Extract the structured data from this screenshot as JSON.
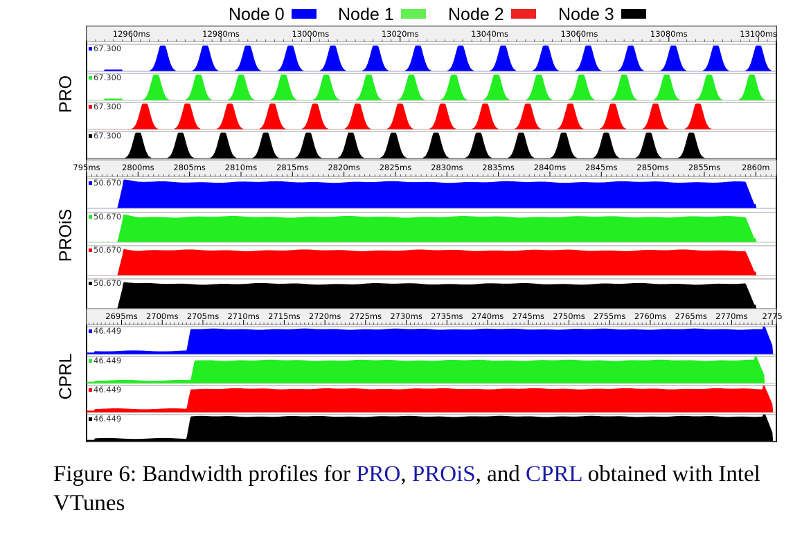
{
  "legend": [
    {
      "label": "Node 0",
      "color": "#0000ff"
    },
    {
      "label": "Node 1",
      "color": "#66ee55"
    },
    {
      "label": "Node 2",
      "color": "#ee2222"
    },
    {
      "label": "Node 3",
      "color": "#000000"
    }
  ],
  "chart_data": [
    {
      "type": "area",
      "ylabel": "PRO",
      "x_unit": "ms",
      "xlim": [
        12950,
        13104
      ],
      "x_ticks": [
        "12960ms",
        "12980ms",
        "13000ms",
        "13020ms",
        "13040ms",
        "13060ms",
        "13080ms",
        "13100ms"
      ],
      "x_tick_values": [
        12960,
        12980,
        13000,
        13020,
        13040,
        13060,
        13080,
        13100
      ],
      "ymax_label": "67.300",
      "ylim": [
        0,
        67.3
      ],
      "pattern": "periodic bursts",
      "series": [
        {
          "name": "Node 0",
          "color": "#0000ff",
          "peak_times_ms": [
            12967,
            12976.5,
            12986,
            12995.5,
            13005,
            13014.5,
            13024,
            13033.5,
            13043,
            13052.5,
            13062,
            13071.5,
            13081,
            13090.5,
            13100
          ]
        },
        {
          "name": "Node 1",
          "color": "#22ee22",
          "peak_times_ms": [
            12965.5,
            12975,
            12984.5,
            12994,
            13003.5,
            13013,
            13022.5,
            13032,
            13041.5,
            13051,
            13060.5,
            13070,
            13079.5,
            13089,
            13098.5
          ]
        },
        {
          "name": "Node 2",
          "color": "#ff0000",
          "peak_times_ms": [
            12963,
            12972.5,
            12982,
            12991.5,
            13001,
            13010.5,
            13020,
            13029.5,
            13039,
            13048.5,
            13058,
            13067.5,
            13077,
            13086.5
          ]
        },
        {
          "name": "Node 3",
          "color": "#000000",
          "peak_times_ms": [
            12961.5,
            12971,
            12980.5,
            12990,
            12999.5,
            13009,
            13018.5,
            13028,
            13037.5,
            13047,
            13056.5,
            13066,
            13075.5,
            13085
          ]
        }
      ]
    },
    {
      "type": "area",
      "ylabel": "PROiS",
      "x_unit": "ms",
      "xlim": [
        2795,
        2862
      ],
      "x_ticks": [
        "795ms",
        "2800ms",
        "2805ms",
        "2810ms",
        "2815ms",
        "2820ms",
        "2825ms",
        "2830ms",
        "2835ms",
        "2840ms",
        "2845ms",
        "2850ms",
        "2855ms",
        "2860m"
      ],
      "x_tick_values": [
        2795,
        2800,
        2805,
        2810,
        2815,
        2820,
        2825,
        2830,
        2835,
        2840,
        2845,
        2850,
        2855,
        2860
      ],
      "ymax_label": "50.670",
      "ylim": [
        0,
        50.67
      ],
      "pattern": "sustained plateau",
      "series": [
        {
          "name": "Node 0",
          "color": "#0000ff",
          "start_ms": 2798,
          "end_ms": 2860,
          "plateau": 44.5
        },
        {
          "name": "Node 1",
          "color": "#22ee22",
          "start_ms": 2798,
          "end_ms": 2860,
          "plateau": 43.0
        },
        {
          "name": "Node 2",
          "color": "#ff0000",
          "start_ms": 2798,
          "end_ms": 2860,
          "plateau": 42.5
        },
        {
          "name": "Node 3",
          "color": "#000000",
          "start_ms": 2798,
          "end_ms": 2860,
          "plateau": 42.0
        }
      ]
    },
    {
      "type": "area",
      "ylabel": "CPRL",
      "x_unit": "ms",
      "xlim": [
        2690.7,
        2775.5
      ],
      "x_ticks": [
        "2695ms",
        "2700ms",
        "2705ms",
        "2710ms",
        "2715ms",
        "2720ms",
        "2725ms",
        "2730ms",
        "2735ms",
        "2740ms",
        "2745ms",
        "2750ms",
        "2755ms",
        "2760ms",
        "2765ms",
        "2770ms",
        "2775"
      ],
      "x_tick_values": [
        2695,
        2700,
        2705,
        2710,
        2715,
        2720,
        2725,
        2730,
        2735,
        2740,
        2745,
        2750,
        2755,
        2760,
        2765,
        2770,
        2775
      ],
      "ymax_label": "46.449",
      "ylim": [
        0,
        46.449
      ],
      "pattern": "low phase then sustained plateau",
      "series": [
        {
          "name": "Node 0",
          "color": "#0000ff",
          "low_level": 5.5,
          "rise_ms": 2703,
          "plateau": 42.0,
          "end_ms": 2775
        },
        {
          "name": "Node 1",
          "color": "#22ee22",
          "low_level": 5.0,
          "rise_ms": 2703.5,
          "plateau": 39.5,
          "end_ms": 2774
        },
        {
          "name": "Node 2",
          "color": "#ff0000",
          "low_level": 6.0,
          "rise_ms": 2703,
          "plateau": 40.5,
          "end_ms": 2775
        },
        {
          "name": "Node 3",
          "color": "#000000",
          "low_level": 5.0,
          "rise_ms": 2703,
          "plateau": 43.0,
          "end_ms": 2775
        }
      ]
    }
  ],
  "caption": {
    "prefix": "Figure 6: Bandwidth profiles for ",
    "sys1": "PRO",
    "sep1": ", ",
    "sys2": "PROiS",
    "sep2": ", and ",
    "sys3": "CPRL",
    "suffix": " obtained with Intel VTunes"
  }
}
